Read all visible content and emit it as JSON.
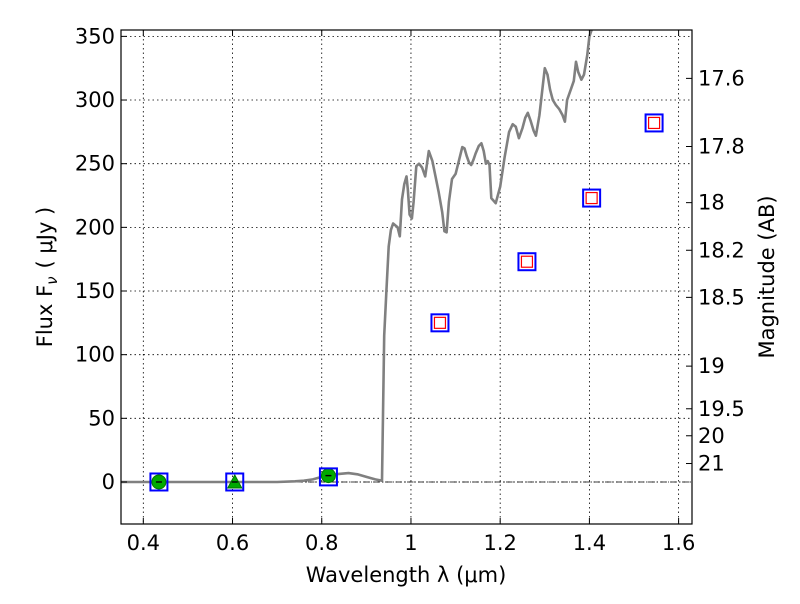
{
  "chart_data": {
    "type": "scatter",
    "xlabel": "Wavelength  λ (μm)",
    "ylabel": "Flux  F",
    "ylabel_sub": "ν",
    "ylabel_units": "( μJy )",
    "y2label": "Magnitude (AB)",
    "xlim": [
      0.35,
      1.63
    ],
    "ylim": [
      -33,
      355
    ],
    "grid": true,
    "x_ticks": [
      {
        "value": 0.4,
        "label": "0.4"
      },
      {
        "value": 0.6,
        "label": "0.6"
      },
      {
        "value": 0.8,
        "label": "0.8"
      },
      {
        "value": 1.0,
        "label": "1"
      },
      {
        "value": 1.2,
        "label": "1.2"
      },
      {
        "value": 1.4,
        "label": "1.4"
      },
      {
        "value": 1.6,
        "label": "1.6"
      }
    ],
    "y_ticks": [
      {
        "value": 0,
        "label": "0"
      },
      {
        "value": 50,
        "label": "50"
      },
      {
        "value": 100,
        "label": "100"
      },
      {
        "value": 150,
        "label": "150"
      },
      {
        "value": 200,
        "label": "200"
      },
      {
        "value": 250,
        "label": "250"
      },
      {
        "value": 300,
        "label": "300"
      },
      {
        "value": 350,
        "label": "350"
      }
    ],
    "mag_ticks": [
      {
        "flux": 317.0,
        "label": "17.6"
      },
      {
        "flux": 263.5,
        "label": "17.8"
      },
      {
        "flux": 219.4,
        "label": "18"
      },
      {
        "flux": 182.0,
        "label": "18.2"
      },
      {
        "flux": 145.0,
        "label": "18.5"
      },
      {
        "flux": 91.0,
        "label": "19"
      },
      {
        "flux": 57.5,
        "label": "19.5"
      },
      {
        "flux": 36.3,
        "label": "20"
      },
      {
        "flux": 14.5,
        "label": "21"
      }
    ],
    "series": [
      {
        "kind": "line",
        "color": "#808080",
        "points": [
          [
            0.35,
            0
          ],
          [
            0.45,
            0
          ],
          [
            0.55,
            0
          ],
          [
            0.65,
            0
          ],
          [
            0.7,
            0
          ],
          [
            0.74,
            0.5
          ],
          [
            0.76,
            1
          ],
          [
            0.78,
            2
          ],
          [
            0.8,
            4
          ],
          [
            0.83,
            6
          ],
          [
            0.86,
            7
          ],
          [
            0.88,
            6
          ],
          [
            0.9,
            4
          ],
          [
            0.92,
            2
          ],
          [
            0.935,
            1
          ],
          [
            0.94,
            115
          ],
          [
            0.945,
            150
          ],
          [
            0.95,
            185
          ],
          [
            0.955,
            198
          ],
          [
            0.96,
            203
          ],
          [
            0.97,
            200
          ],
          [
            0.975,
            193
          ],
          [
            0.98,
            222
          ],
          [
            0.985,
            234
          ],
          [
            0.99,
            240
          ],
          [
            0.993,
            230
          ],
          [
            0.997,
            210
          ],
          [
            1.002,
            207
          ],
          [
            1.006,
            220
          ],
          [
            1.012,
            248
          ],
          [
            1.018,
            250
          ],
          [
            1.025,
            247
          ],
          [
            1.032,
            240
          ],
          [
            1.04,
            260
          ],
          [
            1.048,
            252
          ],
          [
            1.055,
            240
          ],
          [
            1.062,
            228
          ],
          [
            1.07,
            212
          ],
          [
            1.075,
            197
          ],
          [
            1.08,
            196
          ],
          [
            1.085,
            220
          ],
          [
            1.092,
            238
          ],
          [
            1.1,
            242
          ],
          [
            1.108,
            253
          ],
          [
            1.115,
            263
          ],
          [
            1.12,
            262
          ],
          [
            1.125,
            256
          ],
          [
            1.13,
            251
          ],
          [
            1.135,
            249
          ],
          [
            1.14,
            253
          ],
          [
            1.145,
            258
          ],
          [
            1.152,
            264
          ],
          [
            1.158,
            266
          ],
          [
            1.163,
            260
          ],
          [
            1.168,
            250
          ],
          [
            1.172,
            252
          ],
          [
            1.176,
            249
          ],
          [
            1.18,
            223
          ],
          [
            1.185,
            221
          ],
          [
            1.19,
            219
          ],
          [
            1.2,
            232
          ],
          [
            1.21,
            255
          ],
          [
            1.22,
            275
          ],
          [
            1.228,
            281
          ],
          [
            1.235,
            279
          ],
          [
            1.242,
            270
          ],
          [
            1.25,
            278
          ],
          [
            1.256,
            286
          ],
          [
            1.262,
            290
          ],
          [
            1.268,
            284
          ],
          [
            1.275,
            276
          ],
          [
            1.28,
            272
          ],
          [
            1.288,
            288
          ],
          [
            1.295,
            310
          ],
          [
            1.3,
            325
          ],
          [
            1.306,
            320
          ],
          [
            1.312,
            308
          ],
          [
            1.318,
            300
          ],
          [
            1.325,
            296
          ],
          [
            1.332,
            293
          ],
          [
            1.34,
            288
          ],
          [
            1.345,
            283
          ],
          [
            1.35,
            300
          ],
          [
            1.358,
            308
          ],
          [
            1.365,
            315
          ],
          [
            1.37,
            330
          ],
          [
            1.375,
            322
          ],
          [
            1.382,
            316
          ],
          [
            1.388,
            320
          ],
          [
            1.395,
            335
          ],
          [
            1.4,
            350
          ],
          [
            1.405,
            356
          ]
        ]
      },
      {
        "kind": "markers",
        "name": "green",
        "points": [
          {
            "x": 0.435,
            "y": 0,
            "shape": "circle",
            "color": "#00aa00"
          },
          {
            "x": 0.605,
            "y": 0,
            "shape": "triangle",
            "color": "#00aa00"
          },
          {
            "x": 0.815,
            "y": 5,
            "shape": "circle",
            "color": "#00aa00"
          }
        ]
      },
      {
        "kind": "markers",
        "name": "blue-squares",
        "points": [
          {
            "x": 0.435,
            "y": 0
          },
          {
            "x": 0.605,
            "y": 0
          },
          {
            "x": 0.815,
            "y": 4
          },
          {
            "x": 1.065,
            "y": 125
          },
          {
            "x": 1.26,
            "y": 173
          },
          {
            "x": 1.405,
            "y": 223
          },
          {
            "x": 1.545,
            "y": 282
          }
        ],
        "color": "#0000ff"
      },
      {
        "kind": "markers",
        "name": "red-squares",
        "points": [
          {
            "x": 1.065,
            "y": 125
          },
          {
            "x": 1.26,
            "y": 173
          },
          {
            "x": 1.405,
            "y": 223
          },
          {
            "x": 1.545,
            "y": 282
          }
        ],
        "color": "#ff0000"
      }
    ]
  }
}
